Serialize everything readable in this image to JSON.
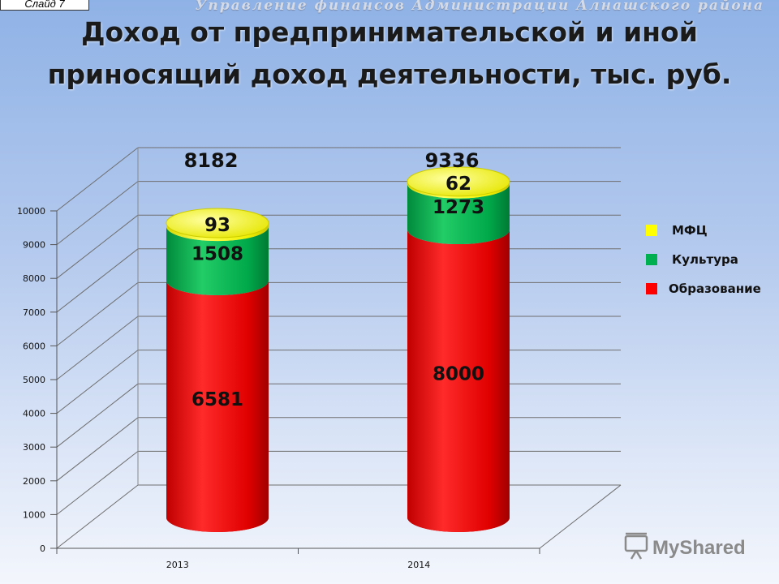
{
  "slide_label": "Слайд 7",
  "header_org": "Управление финансов Администрации Алнашского района",
  "chart_data": {
    "type": "bar",
    "stacked": true,
    "style": "3d-cylinder",
    "title": "Доход от предпринимательской и иной приносящий доход деятельности, тыс. руб.",
    "categories": [
      "2013",
      "2014"
    ],
    "series": [
      {
        "name": "Образование",
        "values": [
          6581,
          8000
        ],
        "color": "#ff0000"
      },
      {
        "name": "Культура",
        "values": [
          1508,
          1273
        ],
        "color": "#00b050"
      },
      {
        "name": "МФЦ",
        "values": [
          93,
          62
        ],
        "color": "#ffff00"
      }
    ],
    "totals": [
      8182,
      9336
    ],
    "yticks": [
      "0",
      "1000",
      "2000",
      "3000",
      "4000",
      "5000",
      "6000",
      "7000",
      "8000",
      "9000",
      "10000"
    ],
    "ylim": [
      0,
      10000
    ],
    "grid": true,
    "legend_position": "right",
    "legend": [
      "МФЦ",
      "Культура",
      "Образование"
    ]
  },
  "watermark": {
    "text": "MyShared"
  }
}
